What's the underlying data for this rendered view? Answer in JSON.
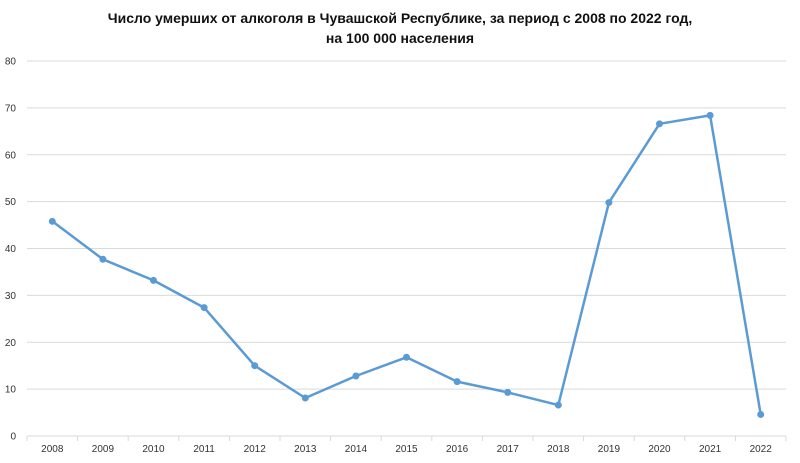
{
  "chart_data": {
    "type": "line",
    "title_line1": "Число умерших от алкоголя в Чувашской Республике, за период с 2008 по 2022 год,",
    "title_line2": "на 100 000 населения",
    "xlabel": "",
    "ylabel": "",
    "categories": [
      "2008",
      "2009",
      "2010",
      "2011",
      "2012",
      "2013",
      "2014",
      "2015",
      "2016",
      "2017",
      "2018",
      "2019",
      "2020",
      "2021",
      "2022"
    ],
    "series": [
      {
        "values": [
          45.8,
          37.7,
          33.2,
          27.4,
          15.0,
          8.1,
          12.8,
          16.8,
          11.6,
          9.3,
          6.6,
          49.8,
          66.6,
          68.4,
          4.6
        ],
        "color": "#5b9bd5"
      }
    ],
    "ylim": [
      0,
      80
    ],
    "yticks": [
      0,
      10,
      20,
      30,
      40,
      50,
      60,
      70,
      80
    ],
    "grid": true,
    "legend": "none",
    "colors": {
      "line": "#5b9bd5",
      "grid": "#d9d9d9",
      "axis": "#d9d9d9"
    }
  }
}
